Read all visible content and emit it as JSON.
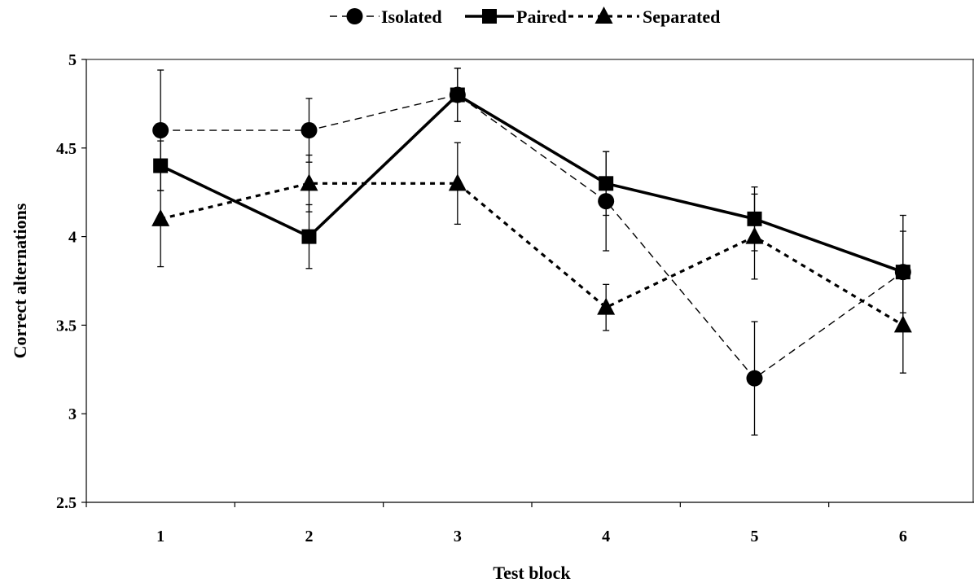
{
  "chart_data": {
    "type": "line",
    "xlabel": "Test block",
    "ylabel": "Correct alternations",
    "categories": [
      "1",
      "2",
      "3",
      "4",
      "5",
      "6"
    ],
    "ylim": [
      2.5,
      5
    ],
    "yticks": [
      "2.5",
      "3",
      "3.5",
      "4",
      "4.5",
      "5"
    ],
    "grid": false,
    "legend_position": "top-center",
    "series": [
      {
        "name": "Isolated",
        "marker": "circle",
        "line_style": "dashed-thin",
        "values": [
          4.6,
          4.6,
          4.8,
          4.2,
          3.2,
          3.8
        ],
        "errors": [
          0.34,
          0.18,
          0.15,
          0.28,
          0.32,
          0.32
        ]
      },
      {
        "name": "Paired",
        "marker": "square",
        "line_style": "solid-thick",
        "values": [
          4.4,
          4.0,
          4.8,
          4.3,
          4.1,
          3.8
        ],
        "errors": [
          0.14,
          0.18,
          0.15,
          0.18,
          0.18,
          0.23
        ]
      },
      {
        "name": "Separated",
        "marker": "triangle",
        "line_style": "dotted-thick",
        "values": [
          4.1,
          4.3,
          4.3,
          3.6,
          4.0,
          3.5
        ],
        "errors": [
          0.27,
          0.16,
          0.23,
          0.13,
          0.24,
          0.27
        ]
      }
    ],
    "colors": {
      "lines": "#000000",
      "background": "#ffffff"
    }
  }
}
